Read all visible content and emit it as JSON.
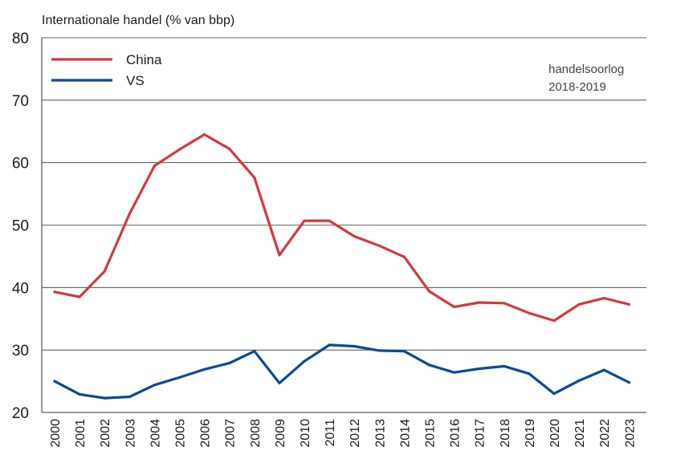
{
  "chart_data": {
    "type": "line",
    "ylabel": "Internationale handel (% van bbp)",
    "xlabel": "",
    "ylim": [
      20,
      80
    ],
    "yticks": [
      20,
      30,
      40,
      50,
      60,
      70,
      80
    ],
    "grid": true,
    "legend_placement": "top-left",
    "annotation": {
      "line1": "handelsoorlog",
      "line2": "2018-2019"
    },
    "x": [
      "2000",
      "2001",
      "2002",
      "2003",
      "2004",
      "2005",
      "2006",
      "2007",
      "2008",
      "2009",
      "2010",
      "2011",
      "2012",
      "2013",
      "2014",
      "2015",
      "2016",
      "2017",
      "2018",
      "2019",
      "2020",
      "2021",
      "2022",
      "2023"
    ],
    "series": [
      {
        "name": "China",
        "color": "#d2393f",
        "values": [
          39.3,
          38.5,
          42.6,
          51.8,
          59.5,
          62.1,
          64.5,
          62.2,
          57.6,
          45.2,
          50.7,
          50.7,
          48.2,
          46.7,
          44.9,
          39.4,
          36.9,
          37.6,
          37.5,
          35.9,
          34.7,
          37.3,
          38.3,
          37.3
        ]
      },
      {
        "name": "VS",
        "color": "#0b4a8f",
        "values": [
          25.0,
          22.9,
          22.3,
          22.5,
          24.4,
          25.6,
          26.9,
          27.9,
          29.8,
          24.7,
          28.2,
          30.8,
          30.6,
          29.9,
          29.8,
          27.6,
          26.4,
          27.0,
          27.4,
          26.2,
          23.0,
          25.1,
          26.8,
          24.8
        ]
      }
    ]
  }
}
